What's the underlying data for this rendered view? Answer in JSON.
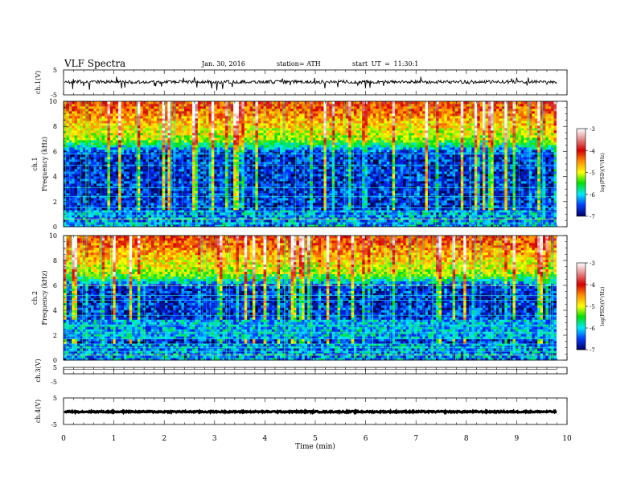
{
  "header": {
    "title": "VLF Spectra",
    "date": "Jan. 30, 2016",
    "station": "station= ATH",
    "start": "start UT = 11:30:1"
  },
  "chart_data": [
    {
      "type": "line",
      "panel": "ch1-waveform",
      "ylabel": "ch.1(V)",
      "ylim": [
        -5,
        5
      ],
      "yticks": [
        "5",
        "-5"
      ],
      "xlim": [
        0,
        10
      ],
      "grid": false,
      "series": [
        {
          "trace": "waveform",
          "baseline_v": 0.2,
          "spike_max_v": 2.3,
          "spike_min_v": -3.3,
          "end_min": 9.8
        }
      ]
    },
    {
      "type": "heatmap",
      "panel": "ch1-spectrogram",
      "ylabel": "ch.1\nFrequency (kHz)",
      "ylim": [
        0,
        10
      ],
      "yticks": [
        "0",
        "2",
        "4",
        "6",
        "8",
        "10"
      ],
      "xlim": [
        0,
        9.8
      ],
      "zlim": [
        -7,
        -3
      ],
      "colorbar": {
        "label": "log(PSD)(V²/Hz)",
        "ticks": [
          "-3",
          "-4",
          "-5",
          "-6",
          "-7"
        ]
      }
    },
    {
      "type": "heatmap",
      "panel": "ch2-spectrogram",
      "ylabel": "ch.2\nFrequency (kHz)",
      "ylim": [
        0,
        10
      ],
      "yticks": [
        "0",
        "2",
        "4",
        "6",
        "8",
        "10"
      ],
      "xlim": [
        0,
        9.8
      ],
      "zlim": [
        -7,
        -3
      ],
      "colorbar": {
        "label": "log(PSD)(V²/Hz)",
        "ticks": [
          "-3",
          "-4",
          "-5",
          "-6",
          "-7"
        ]
      }
    },
    {
      "type": "line",
      "panel": "ch3-waveform",
      "ylabel": "ch.3(V)",
      "ylim": [
        -5,
        5
      ],
      "yticks": [
        "5"
      ],
      "xlim": [
        0,
        10
      ],
      "series": [
        {
          "trace": "waveform",
          "baseline_v": 1.7,
          "end_min": 9.8
        }
      ]
    },
    {
      "type": "line",
      "panel": "ch4-waveform",
      "ylabel": "ch.4(V)",
      "ylim": [
        -5,
        5
      ],
      "yticks": [
        "5",
        "-5"
      ],
      "xlim": [
        0,
        10
      ],
      "xlabel": "Time (min)",
      "xticks": [
        "0",
        "1",
        "2",
        "3",
        "4",
        "5",
        "6",
        "7",
        "8",
        "9",
        "10"
      ],
      "series": [
        {
          "trace": "waveform",
          "baseline_v": -0.2,
          "end_min": 9.8
        }
      ]
    }
  ]
}
